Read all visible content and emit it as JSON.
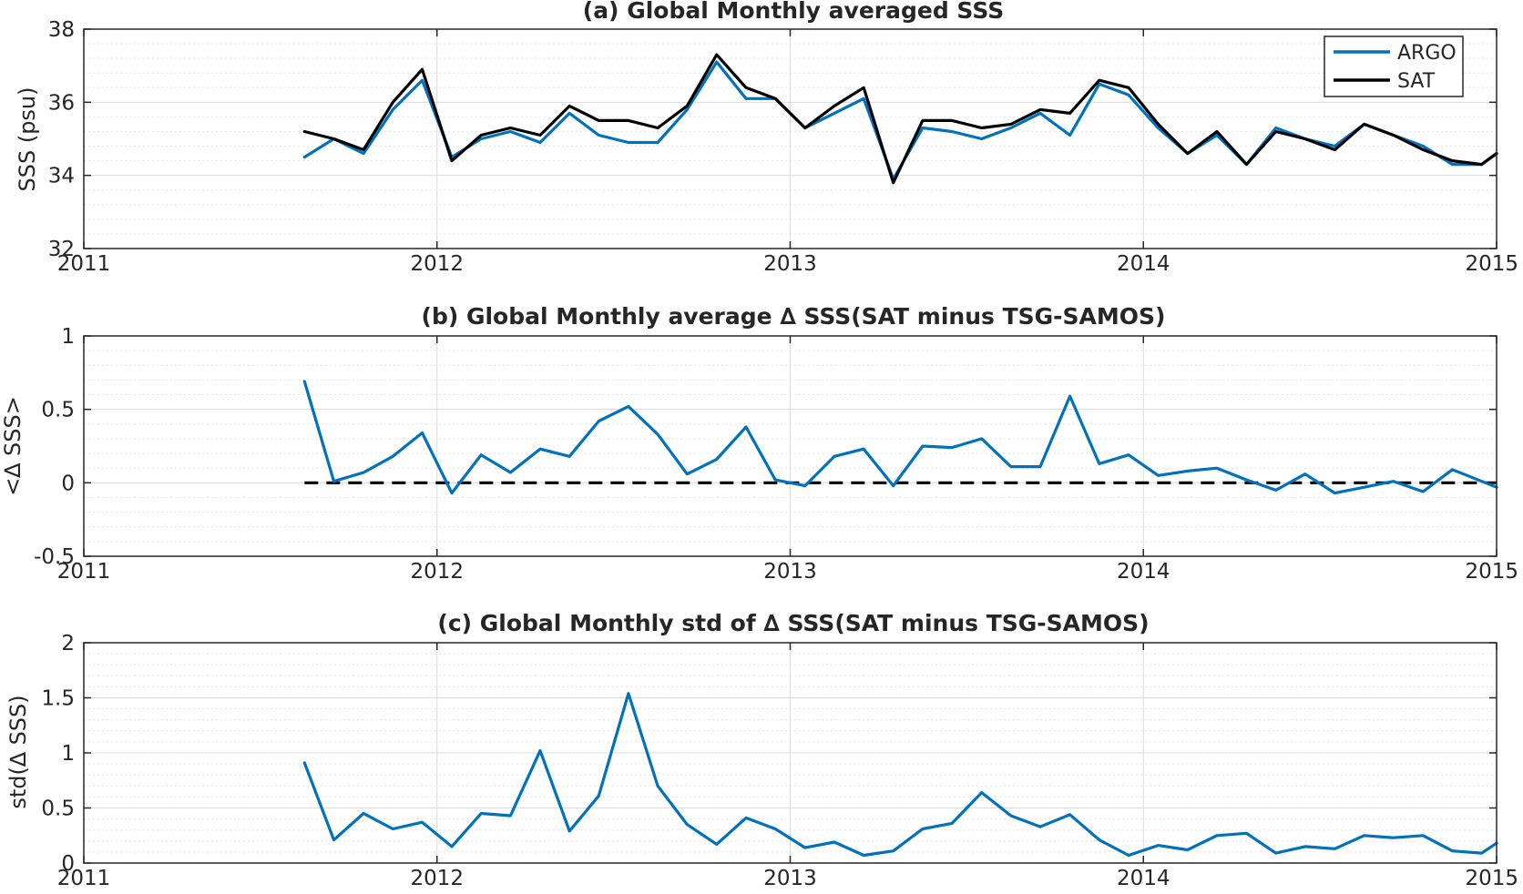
{
  "colors": {
    "argo": "#0072BD",
    "sat": "#000000",
    "axis": "#262626",
    "grid_major": "#dcdcdc",
    "grid_minor": "#e6e6e6",
    "zero_line": "#000000"
  },
  "chart_data": [
    {
      "type": "line",
      "title": "(a) Global Monthly averaged SSS",
      "ylabel": "SSS (psu)",
      "xlabel": "",
      "xlim": [
        2011,
        2015
      ],
      "ylim": [
        32,
        38
      ],
      "xticks": [
        2011,
        2012,
        2013,
        2014,
        2015
      ],
      "xtick_labels": [
        "2011",
        "2012",
        "2013",
        "2014",
        "2015"
      ],
      "yticks": [
        32,
        34,
        36,
        38
      ],
      "ytick_labels": [
        "32",
        "34",
        "36",
        "38"
      ],
      "grid": true,
      "minor_grid": true,
      "legend": {
        "position": "top-right",
        "entries": [
          "ARGO",
          "SAT"
        ]
      },
      "x": [
        2011.625,
        2011.708,
        2011.792,
        2011.875,
        2011.958,
        2012.042,
        2012.125,
        2012.208,
        2012.292,
        2012.375,
        2012.458,
        2012.542,
        2012.625,
        2012.708,
        2012.792,
        2012.875,
        2012.958,
        2013.042,
        2013.125,
        2013.208,
        2013.292,
        2013.375,
        2013.458,
        2013.542,
        2013.625,
        2013.708,
        2013.792,
        2013.875,
        2013.958,
        2014.042,
        2014.125,
        2014.208,
        2014.292,
        2014.375,
        2014.458,
        2014.542,
        2014.625,
        2014.708,
        2014.792,
        2014.875,
        2014.958,
        2015.0
      ],
      "series": [
        {
          "name": "ARGO",
          "color": "#0072BD",
          "values": [
            34.5,
            35.0,
            34.6,
            35.8,
            36.6,
            34.5,
            35.0,
            35.2,
            34.9,
            35.7,
            35.1,
            34.9,
            34.9,
            35.8,
            37.1,
            36.1,
            36.1,
            35.3,
            35.7,
            36.1,
            33.9,
            35.3,
            35.2,
            35.0,
            35.3,
            35.7,
            35.1,
            36.5,
            36.2,
            35.3,
            34.6,
            35.1,
            34.3,
            35.3,
            35.0,
            34.8,
            35.4,
            35.1,
            34.8,
            34.3,
            34.3,
            34.6
          ]
        },
        {
          "name": "SAT",
          "color": "#000000",
          "values": [
            35.2,
            35.0,
            34.7,
            36.0,
            36.9,
            34.4,
            35.1,
            35.3,
            35.1,
            35.9,
            35.5,
            35.5,
            35.3,
            35.9,
            37.3,
            36.4,
            36.1,
            35.3,
            35.9,
            36.4,
            33.8,
            35.5,
            35.5,
            35.3,
            35.4,
            35.8,
            35.7,
            36.6,
            36.4,
            35.4,
            34.6,
            35.2,
            34.3,
            35.2,
            35.0,
            34.7,
            35.4,
            35.1,
            34.7,
            34.4,
            34.3,
            34.6
          ]
        }
      ]
    },
    {
      "type": "line",
      "title": "(b) Global Monthly average ∆ SSS(SAT minus TSG-SAMOS)",
      "ylabel": "<∆ SSS>",
      "xlabel": "",
      "xlim": [
        2011,
        2015
      ],
      "ylim": [
        -0.5,
        1
      ],
      "xticks": [
        2011,
        2012,
        2013,
        2014,
        2015
      ],
      "xtick_labels": [
        "2011",
        "2012",
        "2013",
        "2014",
        "2015"
      ],
      "yticks": [
        -0.5,
        0,
        0.5,
        1
      ],
      "ytick_labels": [
        "-0.5",
        "0",
        "0.5",
        "1"
      ],
      "grid": true,
      "minor_grid": true,
      "reference_line": {
        "y": 0,
        "x_start": 2011.625,
        "x_end": 2015.0,
        "style": "dashed"
      },
      "x": [
        2011.625,
        2011.708,
        2011.792,
        2011.875,
        2011.958,
        2012.042,
        2012.125,
        2012.208,
        2012.292,
        2012.375,
        2012.458,
        2012.542,
        2012.625,
        2012.708,
        2012.792,
        2012.875,
        2012.958,
        2013.042,
        2013.125,
        2013.208,
        2013.292,
        2013.375,
        2013.458,
        2013.542,
        2013.625,
        2013.708,
        2013.792,
        2013.875,
        2013.958,
        2014.042,
        2014.125,
        2014.208,
        2014.292,
        2014.375,
        2014.458,
        2014.542,
        2014.625,
        2014.708,
        2014.792,
        2014.875,
        2014.958,
        2015.0
      ],
      "series": [
        {
          "color": "#0072BD",
          "values": [
            0.69,
            0.01,
            0.07,
            0.18,
            0.34,
            -0.07,
            0.19,
            0.07,
            0.23,
            0.18,
            0.42,
            0.52,
            0.33,
            0.06,
            0.16,
            0.38,
            0.02,
            -0.02,
            0.18,
            0.23,
            -0.02,
            0.25,
            0.24,
            0.3,
            0.11,
            0.11,
            0.59,
            0.13,
            0.19,
            0.05,
            0.08,
            0.1,
            0.02,
            -0.05,
            0.06,
            -0.07,
            -0.03,
            0.01,
            -0.06,
            0.09,
            0.01,
            -0.03
          ]
        }
      ]
    },
    {
      "type": "line",
      "title": "(c) Global Monthly std of ∆ SSS(SAT minus TSG-SAMOS)",
      "ylabel": "std(∆ SSS)",
      "xlabel": "",
      "xlim": [
        2011,
        2015
      ],
      "ylim": [
        0,
        2
      ],
      "xticks": [
        2011,
        2012,
        2013,
        2014,
        2015
      ],
      "xtick_labels": [
        "2011",
        "2012",
        "2013",
        "2014",
        "2015"
      ],
      "yticks": [
        0,
        0.5,
        1,
        1.5,
        2
      ],
      "ytick_labels": [
        "0",
        "0.5",
        "1",
        "1.5",
        "2"
      ],
      "grid": true,
      "minor_grid": true,
      "x": [
        2011.625,
        2011.708,
        2011.792,
        2011.875,
        2011.958,
        2012.042,
        2012.125,
        2012.208,
        2012.292,
        2012.375,
        2012.458,
        2012.542,
        2012.625,
        2012.708,
        2012.792,
        2012.875,
        2012.958,
        2013.042,
        2013.125,
        2013.208,
        2013.292,
        2013.375,
        2013.458,
        2013.542,
        2013.625,
        2013.708,
        2013.792,
        2013.875,
        2013.958,
        2014.042,
        2014.125,
        2014.208,
        2014.292,
        2014.375,
        2014.458,
        2014.542,
        2014.625,
        2014.708,
        2014.792,
        2014.875,
        2014.958,
        2015.0
      ],
      "series": [
        {
          "color": "#0072BD",
          "values": [
            0.91,
            0.21,
            0.45,
            0.31,
            0.37,
            0.15,
            0.45,
            0.43,
            1.02,
            0.29,
            0.61,
            1.54,
            0.7,
            0.35,
            0.17,
            0.41,
            0.31,
            0.14,
            0.19,
            0.07,
            0.11,
            0.31,
            0.36,
            0.64,
            0.43,
            0.33,
            0.44,
            0.21,
            0.07,
            0.16,
            0.12,
            0.25,
            0.27,
            0.09,
            0.15,
            0.13,
            0.25,
            0.23,
            0.25,
            0.11,
            0.09,
            0.18
          ]
        }
      ]
    }
  ]
}
